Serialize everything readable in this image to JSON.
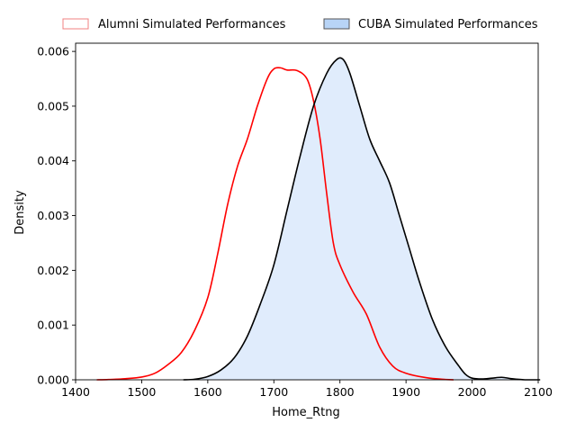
{
  "chart_data": {
    "type": "area",
    "xlabel": "Home_Rtng",
    "ylabel": "Density",
    "xlim": [
      1400,
      2100
    ],
    "ylim": [
      0,
      0.00615
    ],
    "x_ticks": [
      1400,
      1500,
      1600,
      1700,
      1800,
      1900,
      2000,
      2100
    ],
    "x_tick_labels": [
      "1400",
      "1500",
      "1600",
      "1700",
      "1800",
      "1900",
      "2000",
      "2100"
    ],
    "y_ticks": [
      0,
      0.001,
      0.002,
      0.003,
      0.004,
      0.005,
      0.006
    ],
    "y_tick_labels": [
      "0.000",
      "0.001",
      "0.002",
      "0.003",
      "0.004",
      "0.005",
      "0.006"
    ],
    "legend_placement": "top, outside plot, horizontal",
    "grid": false,
    "series": [
      {
        "name": "Alumni Simulated Performances",
        "line_color": "#ff0000",
        "legend_edge": "#f08080",
        "fill": false,
        "x": [
          1432,
          1450,
          1475,
          1500,
          1520,
          1540,
          1560,
          1580,
          1600,
          1615,
          1630,
          1645,
          1660,
          1675,
          1690,
          1700,
          1710,
          1720,
          1735,
          1750,
          1760,
          1770,
          1780,
          1790,
          1800,
          1820,
          1840,
          1860,
          1880,
          1900,
          1930,
          1960,
          1972
        ],
        "y": [
          0.0,
          5e-06,
          2e-05,
          5e-05,
          0.00012,
          0.00028,
          0.0005,
          0.0009,
          0.0015,
          0.0023,
          0.0032,
          0.0039,
          0.0044,
          0.005,
          0.0055,
          0.00568,
          0.0057,
          0.00566,
          0.00565,
          0.0055,
          0.0051,
          0.0044,
          0.0034,
          0.0025,
          0.0021,
          0.0016,
          0.0012,
          0.0006,
          0.00025,
          0.00012,
          4e-05,
          5e-06,
          0.0
        ]
      },
      {
        "name": "CUBA Simulated Performances",
        "line_color": "#000000",
        "fill_color": "#dbe9fb",
        "legend_face": "#b8d4f6",
        "legend_edge": "#555555",
        "fill": true,
        "x": [
          1563,
          1580,
          1600,
          1620,
          1640,
          1660,
          1680,
          1700,
          1720,
          1740,
          1760,
          1780,
          1795,
          1805,
          1815,
          1830,
          1845,
          1860,
          1875,
          1890,
          1905,
          1920,
          1940,
          1960,
          1980,
          1990,
          2000,
          2015,
          2030,
          2045,
          2060,
          2080,
          2103
        ],
        "y": [
          0.0,
          1e-05,
          6e-05,
          0.00018,
          0.0004,
          0.0008,
          0.0014,
          0.0021,
          0.0031,
          0.0041,
          0.005,
          0.0056,
          0.00585,
          0.00585,
          0.0056,
          0.005,
          0.0044,
          0.004,
          0.0036,
          0.003,
          0.0024,
          0.0018,
          0.0011,
          0.0006,
          0.00025,
          0.0001,
          3e-05,
          1.5e-05,
          3e-05,
          4.5e-05,
          2e-05,
          0.0,
          0.0
        ]
      }
    ]
  }
}
